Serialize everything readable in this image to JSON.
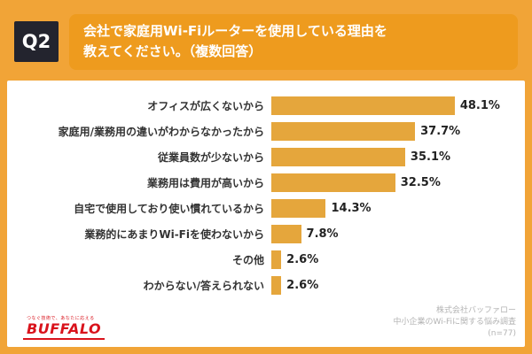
{
  "header": {
    "q_label": "Q2",
    "title_line1": "会社で家庭用Wi-Fiルーターを使用している理由を",
    "title_line2": "教えてください。（複数回答）"
  },
  "chart_data": {
    "type": "bar",
    "orientation": "horizontal",
    "categories": [
      "オフィスが広くないから",
      "家庭用/業務用の違いがわからなかったから",
      "従業員数が少ないから",
      "業務用は費用が高いから",
      "自宅で使用しており使い慣れているから",
      "業務的にあまりWi-Fiを使わないから",
      "その他",
      "わからない/答えられない"
    ],
    "values": [
      48.1,
      37.7,
      35.1,
      32.5,
      14.3,
      7.8,
      2.6,
      2.6
    ],
    "value_labels": [
      "48.1%",
      "37.7%",
      "35.1%",
      "32.5%",
      "14.3%",
      "7.8%",
      "2.6%",
      "2.6%"
    ],
    "title": "会社で家庭用Wi-Fiルーターを使用している理由を教えてください。（複数回答）",
    "xlabel": "",
    "ylabel": "",
    "xlim": [
      0,
      50
    ],
    "grid": false,
    "legend": "none",
    "bar_color": "#E5A63C"
  },
  "footer": {
    "logo_tagline": "つなぐ技術で、あなたに応える",
    "logo_text": "BUFFALO",
    "source_line1": "株式会社バッファロー",
    "source_line2": "中小企業のWi-Fiに関する悩み調査",
    "source_line3": "(n=77)"
  },
  "colors": {
    "background_orange": "#F1A437",
    "title_box_orange": "#EE9B1E",
    "q_box_dark": "#23242E",
    "bar_gold": "#E5A63C",
    "logo_red": "#D9131C",
    "source_gray": "#b3b3b3"
  }
}
